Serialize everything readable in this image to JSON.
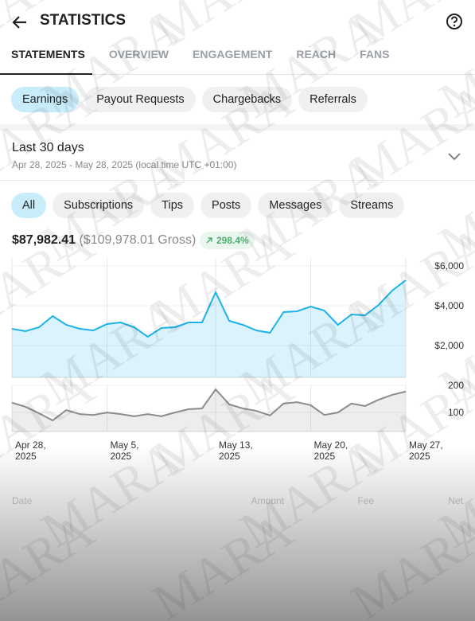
{
  "header": {
    "title": "STATISTICS"
  },
  "tabs": {
    "items": [
      "STATEMENTS",
      "OVERVIEW",
      "ENGAGEMENT",
      "REACH",
      "FANS"
    ],
    "selected": 0
  },
  "filters": {
    "items": [
      "Earnings",
      "Payout Requests",
      "Chargebacks",
      "Referrals"
    ],
    "selected": 0
  },
  "period": {
    "title": "Last 30 days",
    "range": "Apr 28, 2025 - May 28, 2025 (local time UTC +01:00)"
  },
  "types": {
    "items": [
      "All",
      "Subscriptions",
      "Tips",
      "Posts",
      "Messages",
      "Streams"
    ],
    "selected": 0
  },
  "summary": {
    "net": "$87,982.41",
    "gross": "($109,978.01 Gross)",
    "change": "298.4%"
  },
  "chart_data": [
    {
      "type": "area",
      "x": [
        "2025-04-28",
        "2025-04-29",
        "2025-04-30",
        "2025-05-01",
        "2025-05-02",
        "2025-05-03",
        "2025-05-04",
        "2025-05-05",
        "2025-05-06",
        "2025-05-07",
        "2025-05-08",
        "2025-05-09",
        "2025-05-10",
        "2025-05-11",
        "2025-05-12",
        "2025-05-13",
        "2025-05-14",
        "2025-05-15",
        "2025-05-16",
        "2025-05-17",
        "2025-05-18",
        "2025-05-19",
        "2025-05-20",
        "2025-05-21",
        "2025-05-22",
        "2025-05-23",
        "2025-05-24",
        "2025-05-25",
        "2025-05-26",
        "2025-05-27"
      ],
      "xlim": [
        "2025-04-28",
        "2025-05-27"
      ],
      "series": [
        {
          "color": "#1cb3ea",
          "values": [
            2840,
            2720,
            2920,
            3480,
            3040,
            2840,
            2760,
            3080,
            3160,
            2920,
            2440,
            2880,
            2920,
            3160,
            3160,
            4680,
            3240,
            3040,
            2760,
            2640,
            3680,
            3720,
            3960,
            3760,
            3040,
            3560,
            3520,
            4040,
            4760,
            5280
          ]
        }
      ],
      "ylim": [
        400,
        6400
      ],
      "yticks": [
        {
          "value": 6000,
          "label": "$6,000"
        },
        {
          "value": 4000,
          "label": "$4,000"
        },
        {
          "value": 2000,
          "label": "$2,000"
        }
      ],
      "grid": true
    },
    {
      "type": "area",
      "x": [
        "2025-04-28",
        "2025-04-29",
        "2025-04-30",
        "2025-05-01",
        "2025-05-02",
        "2025-05-03",
        "2025-05-04",
        "2025-05-05",
        "2025-05-06",
        "2025-05-07",
        "2025-05-08",
        "2025-05-09",
        "2025-05-10",
        "2025-05-11",
        "2025-05-12",
        "2025-05-13",
        "2025-05-14",
        "2025-05-15",
        "2025-05-16",
        "2025-05-17",
        "2025-05-18",
        "2025-05-19",
        "2025-05-20",
        "2025-05-21",
        "2025-05-22",
        "2025-05-23",
        "2025-05-24",
        "2025-05-25",
        "2025-05-26",
        "2025-05-27"
      ],
      "xlim": [
        "2025-04-28",
        "2025-05-27"
      ],
      "xticks": [
        {
          "value": "2025-04-28",
          "label": [
            "Apr 28,",
            "2025"
          ]
        },
        {
          "value": "2025-05-05",
          "label": [
            "May 5,",
            "2025"
          ]
        },
        {
          "value": "2025-05-13",
          "label": [
            "May 13,",
            "2025"
          ]
        },
        {
          "value": "2025-05-20",
          "label": [
            "May 20,",
            "2025"
          ]
        },
        {
          "value": "2025-05-27",
          "label": [
            "May 27,",
            "2025"
          ]
        }
      ],
      "series": [
        {
          "color": "#8c8c8c",
          "values": [
            136,
            121,
            97,
            71,
            109,
            94,
            91,
            100,
            94,
            86,
            94,
            86,
            100,
            112,
            115,
            185,
            130,
            115,
            106,
            89,
            133,
            138,
            127,
            91,
            100,
            133,
            124,
            147,
            165,
            177
          ]
        }
      ],
      "ylim": [
        30,
        200
      ],
      "yticks": [
        200,
        100
      ],
      "grid": true
    }
  ],
  "table": {
    "columns": [
      "Date",
      "Amount",
      "Fee",
      "Net"
    ]
  },
  "watermark": "MARA"
}
